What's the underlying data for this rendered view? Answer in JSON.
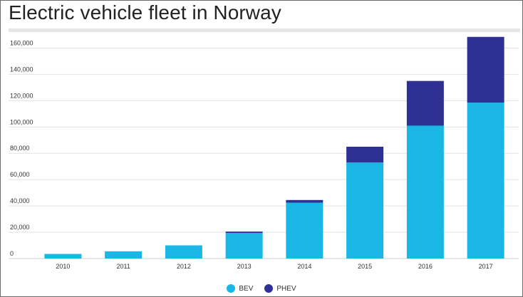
{
  "chart_data": {
    "type": "bar",
    "stacked": true,
    "title": "Electric vehicle fleet in Norway",
    "xlabel": "",
    "ylabel": "",
    "categories": [
      "2010",
      "2011",
      "2012",
      "2013",
      "2014",
      "2015",
      "2016",
      "2017"
    ],
    "series": [
      {
        "name": "BEV",
        "color": "#1ab7e6",
        "values": [
          3500,
          5500,
          10000,
          19500,
          42500,
          73000,
          101000,
          118500
        ]
      },
      {
        "name": "PHEV",
        "color": "#2e3193",
        "values": [
          0,
          0,
          0,
          1000,
          2000,
          12000,
          34000,
          50000
        ]
      }
    ],
    "ylim": [
      0,
      170000
    ],
    "yticks": [
      0,
      20000,
      40000,
      60000,
      80000,
      100000,
      120000,
      140000,
      160000
    ],
    "ytick_labels": [
      "0",
      "20,000",
      "40,000",
      "60,000",
      "80,000",
      "100,000",
      "120,000",
      "140,000",
      "160,000"
    ],
    "grid": true,
    "legend_position": "bottom-center"
  }
}
